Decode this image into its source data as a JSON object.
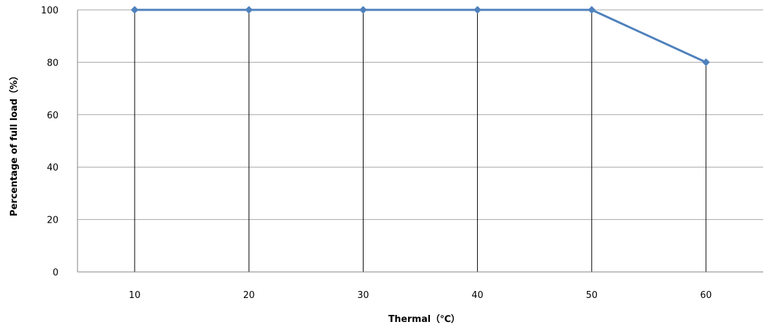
{
  "chart_data": {
    "type": "line",
    "xlabel": "Thermal（℃）",
    "ylabel": "Percentage of full load（%）",
    "categories": [
      "10",
      "20",
      "30",
      "40",
      "50",
      "60"
    ],
    "series": [
      {
        "values": [
          100,
          100,
          100,
          100,
          100,
          80
        ]
      }
    ],
    "ylim": [
      0,
      100
    ],
    "yticks": [
      "0",
      "20",
      "40",
      "60",
      "80",
      "100"
    ],
    "grid": true,
    "colors": {
      "series": "#4f81bd",
      "grid": "#a6a6a6",
      "drop_lines": "#000000",
      "axis": "#808080"
    }
  }
}
